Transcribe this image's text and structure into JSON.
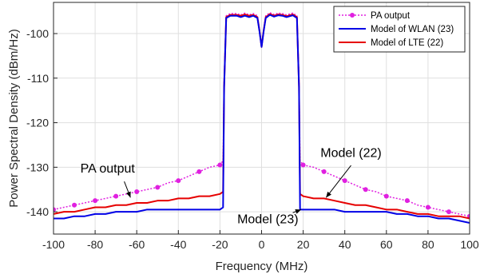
{
  "chart_data": {
    "type": "line",
    "title": "",
    "xlabel": "Frequency (MHz)",
    "ylabel": "Power Spectral Density (dBm/Hz)",
    "xlim": [
      -100,
      100
    ],
    "ylim": [
      -145,
      -93
    ],
    "xticks": [
      -100,
      -80,
      -60,
      -40,
      -20,
      0,
      20,
      40,
      60,
      80,
      100
    ],
    "yticks": [
      -140,
      -130,
      -120,
      -110,
      -100
    ],
    "grid": true,
    "legend_position": "top-right",
    "series": [
      {
        "name": "PA output",
        "color": "#e020e0",
        "style": "dotted-with-markers",
        "x": [
          -100,
          -95,
          -90,
          -85,
          -80,
          -75,
          -70,
          -65,
          -60,
          -55,
          -50,
          -45,
          -40,
          -35,
          -30,
          -25,
          -20,
          -18.5,
          -18,
          -17,
          -15,
          -12,
          -10,
          -8,
          -6,
          -4,
          -2,
          -1,
          0,
          1,
          2,
          4,
          6,
          8,
          10,
          12,
          15,
          17,
          18,
          18.5,
          20,
          25,
          30,
          35,
          40,
          45,
          50,
          55,
          60,
          65,
          70,
          75,
          80,
          85,
          90,
          95,
          100
        ],
        "y": [
          -139.5,
          -139,
          -138.5,
          -138,
          -137.5,
          -137,
          -136.5,
          -136,
          -135.5,
          -135,
          -134.5,
          -133.5,
          -133,
          -132,
          -131,
          -130,
          -129.5,
          -128.5,
          -110,
          -96,
          -95.5,
          -95.5,
          -95.8,
          -95.4,
          -95.8,
          -95.5,
          -96,
          -99,
          -103,
          -99,
          -96,
          -95.3,
          -95.7,
          -95.4,
          -95.5,
          -95.8,
          -95.4,
          -96,
          -110,
          -128.5,
          -129.5,
          -130,
          -131,
          -132,
          -133,
          -134,
          -135,
          -135.5,
          -136.5,
          -137,
          -137.5,
          -138.5,
          -139,
          -139.5,
          -140,
          -140.5,
          -141
        ]
      },
      {
        "name": "Model of WLAN (23)",
        "color": "#0000e6",
        "style": "solid",
        "x": [
          -100,
          -95,
          -90,
          -85,
          -80,
          -75,
          -70,
          -65,
          -60,
          -55,
          -50,
          -45,
          -40,
          -35,
          -30,
          -25,
          -20,
          -18.5,
          -18,
          -17,
          -15,
          -12,
          -10,
          -8,
          -6,
          -4,
          -2,
          -1,
          0,
          1,
          2,
          4,
          6,
          8,
          10,
          12,
          15,
          17,
          18,
          18.5,
          20,
          25,
          30,
          35,
          40,
          45,
          50,
          55,
          60,
          65,
          70,
          75,
          80,
          85,
          90,
          95,
          100
        ],
        "y": [
          -141.5,
          -141.5,
          -141,
          -141,
          -140.5,
          -140.5,
          -140,
          -140,
          -140,
          -139.5,
          -139.5,
          -139.5,
          -139.5,
          -139.5,
          -139.5,
          -139.5,
          -139.5,
          -139,
          -112,
          -96.5,
          -96,
          -96,
          -96.3,
          -96,
          -96.3,
          -96,
          -96.5,
          -99.5,
          -103,
          -99.5,
          -96.5,
          -95.8,
          -96.2,
          -95.9,
          -96,
          -96.3,
          -95.9,
          -96.5,
          -112,
          -139.5,
          -139.5,
          -139.5,
          -139.5,
          -139.5,
          -140,
          -140,
          -140,
          -140,
          -140,
          -140.5,
          -140.5,
          -141,
          -141,
          -141.5,
          -141.5,
          -142,
          -142.5
        ]
      },
      {
        "name": "Model of LTE (22)",
        "color": "#e60000",
        "style": "solid",
        "x": [
          -100,
          -95,
          -90,
          -85,
          -80,
          -75,
          -70,
          -65,
          -60,
          -55,
          -50,
          -45,
          -40,
          -35,
          -30,
          -25,
          -20,
          -18.5,
          -18,
          -17,
          -15,
          -12,
          -10,
          -8,
          -6,
          -4,
          -2,
          -1,
          0,
          1,
          2,
          4,
          6,
          8,
          10,
          12,
          15,
          17,
          18,
          18.5,
          20,
          25,
          30,
          35,
          40,
          45,
          50,
          55,
          60,
          65,
          70,
          75,
          80,
          85,
          90,
          95,
          100
        ],
        "y": [
          -140.5,
          -140,
          -140,
          -139.5,
          -139,
          -139,
          -138.5,
          -138.5,
          -138,
          -138,
          -137.5,
          -137.5,
          -137,
          -137,
          -136.5,
          -136.5,
          -136,
          -135.5,
          -112,
          -96.3,
          -95.8,
          -95.8,
          -96,
          -95.7,
          -96,
          -95.8,
          -96.3,
          -99.3,
          -103,
          -99.3,
          -96.3,
          -95.6,
          -96,
          -95.7,
          -95.8,
          -96.1,
          -95.7,
          -96.3,
          -112,
          -136,
          -136.5,
          -137,
          -137,
          -137.5,
          -138,
          -138.5,
          -138.5,
          -139,
          -139.5,
          -139.5,
          -140,
          -140.5,
          -140.5,
          -141,
          -141,
          -141,
          -141.5
        ]
      }
    ],
    "annotations": [
      {
        "text": "PA output",
        "text_at": [
          -74,
          -131.2
        ],
        "arrow_from": [
          -66,
          -133.2
        ],
        "arrow_to": [
          -63,
          -136.8
        ]
      },
      {
        "text": "Model (22)",
        "text_at": [
          43,
          -127.7
        ],
        "arrow_from": [
          43,
          -129.6
        ],
        "arrow_to": [
          31,
          -136.8
        ]
      },
      {
        "text": "Model (23)",
        "text_at": [
          3,
          -142.6
        ],
        "arrow_from": [
          15,
          -140.2
        ],
        "arrow_to": [
          19,
          -139.5
        ]
      }
    ]
  }
}
